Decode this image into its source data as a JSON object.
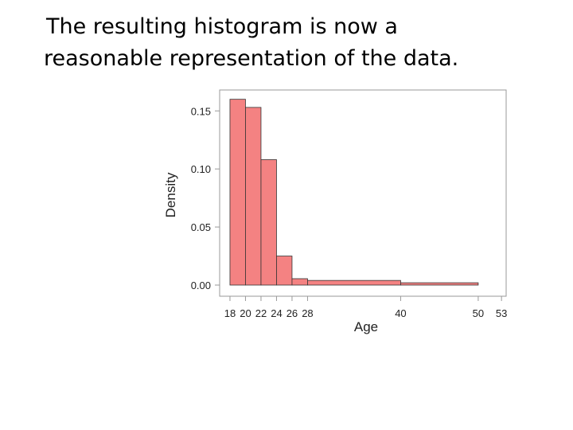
{
  "slide_text": [
    "The resulting histogram is now a",
    "reasonable representation of the data."
  ],
  "chart_data": {
    "type": "histogram",
    "x_label": "Age",
    "y_label": "Density",
    "bins": [
      18,
      20,
      22,
      24,
      26,
      28,
      40,
      50,
      53
    ],
    "values": [
      0.16,
      0.153,
      0.108,
      0.025,
      0.0055,
      0.004,
      0.002,
      0
    ],
    "color": "#f48282",
    "edge_color": "#333333",
    "xlim": [
      16.67,
      53.6
    ],
    "ylim": [
      -0.0096,
      0.168
    ],
    "xticks": [
      18,
      20,
      22,
      24,
      26,
      28,
      40,
      50,
      53
    ],
    "yticks": [
      {
        "value": 0,
        "label": "0.00"
      },
      0.05,
      {
        "value": 0.1,
        "label": "0.10"
      },
      0.15
    ]
  }
}
